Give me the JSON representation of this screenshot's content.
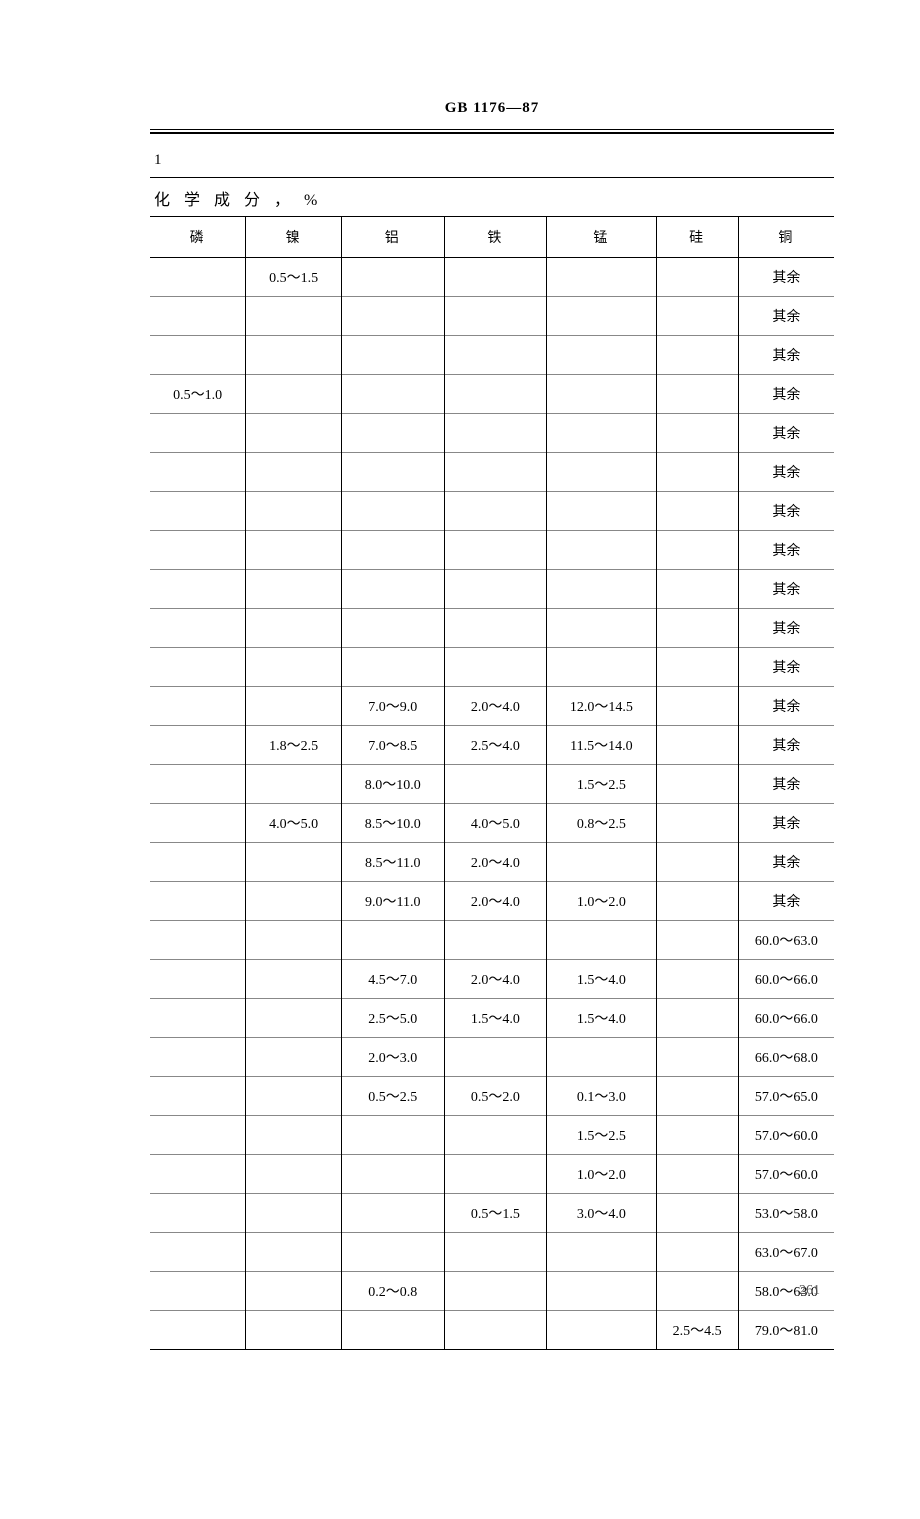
{
  "doc_header": "GB 1176—87",
  "continuation_label": "1",
  "section_title": "化学成分，%",
  "columns": [
    "磷",
    "镍",
    "铝",
    "铁",
    "锰",
    "硅",
    "铜"
  ],
  "col_widths_pct": [
    14,
    14,
    15,
    15,
    16,
    12,
    14
  ],
  "rows": [
    [
      "",
      "0.5～1.5",
      "",
      "",
      "",
      "",
      "其余"
    ],
    [
      "",
      "",
      "",
      "",
      "",
      "",
      "其余"
    ],
    [
      "",
      "",
      "",
      "",
      "",
      "",
      "其余"
    ],
    [
      "0.5～1.0",
      "",
      "",
      "",
      "",
      "",
      "其余"
    ],
    [
      "",
      "",
      "",
      "",
      "",
      "",
      "其余"
    ],
    [
      "",
      "",
      "",
      "",
      "",
      "",
      "其余"
    ],
    [
      "",
      "",
      "",
      "",
      "",
      "",
      "其余"
    ],
    [
      "",
      "",
      "",
      "",
      "",
      "",
      "其余"
    ],
    [
      "",
      "",
      "",
      "",
      "",
      "",
      "其余"
    ],
    [
      "",
      "",
      "",
      "",
      "",
      "",
      "其余"
    ],
    [
      "",
      "",
      "",
      "",
      "",
      "",
      "其余"
    ],
    [
      "",
      "",
      "7.0～9.0",
      "2.0～4.0",
      "12.0～14.5",
      "",
      "其余"
    ],
    [
      "",
      "1.8～2.5",
      "7.0～8.5",
      "2.5～4.0",
      "11.5～14.0",
      "",
      "其余"
    ],
    [
      "",
      "",
      "8.0～10.0",
      "",
      "1.5～2.5",
      "",
      "其余"
    ],
    [
      "",
      "4.0～5.0",
      "8.5～10.0",
      "4.0～5.0",
      "0.8～2.5",
      "",
      "其余"
    ],
    [
      "",
      "",
      "8.5～11.0",
      "2.0～4.0",
      "",
      "",
      "其余"
    ],
    [
      "",
      "",
      "9.0～11.0",
      "2.0～4.0",
      "1.0～2.0",
      "",
      "其余"
    ],
    [
      "",
      "",
      "",
      "",
      "",
      "",
      "60.0～63.0"
    ],
    [
      "",
      "",
      "4.5～7.0",
      "2.0～4.0",
      "1.5～4.0",
      "",
      "60.0～66.0"
    ],
    [
      "",
      "",
      "2.5～5.0",
      "1.5～4.0",
      "1.5～4.0",
      "",
      "60.0～66.0"
    ],
    [
      "",
      "",
      "2.0～3.0",
      "",
      "",
      "",
      "66.0～68.0"
    ],
    [
      "",
      "",
      "0.5～2.5",
      "0.5～2.0",
      "0.1～3.0",
      "",
      "57.0～65.0"
    ],
    [
      "",
      "",
      "",
      "",
      "1.5～2.5",
      "",
      "57.0～60.0"
    ],
    [
      "",
      "",
      "",
      "",
      "1.0～2.0",
      "",
      "57.0～60.0"
    ],
    [
      "",
      "",
      "",
      "0.5～1.5",
      "3.0～4.0",
      "",
      "53.0～58.0"
    ],
    [
      "",
      "",
      "",
      "",
      "",
      "",
      "63.0～67.0"
    ],
    [
      "",
      "",
      "0.2～0.8",
      "",
      "",
      "",
      "58.0～63.0"
    ],
    [
      "",
      "",
      "",
      "",
      "",
      "2.5～4.5",
      "79.0～81.0"
    ]
  ],
  "page_number": "261",
  "style": {
    "font_family": "SimSun",
    "font_size_header": 15,
    "font_size_body": 14,
    "text_color": "#000000",
    "background": "#ffffff",
    "border_color": "#000000",
    "row_border_color": "#888888"
  }
}
